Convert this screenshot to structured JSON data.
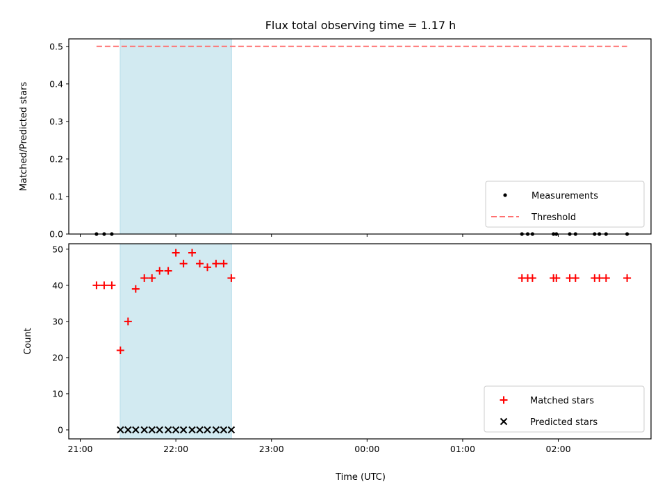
{
  "chart_data": [
    {
      "type": "scatter",
      "title": "Flux total observing time = 1.17 h",
      "xlabel": "",
      "ylabel": "Matched/Predicted stars",
      "ylim": [
        0.0,
        0.52
      ],
      "yticks": [
        0.0,
        0.1,
        0.2,
        0.3,
        0.4,
        0.5
      ],
      "ytick_labels": [
        "0.0",
        "0.1",
        "0.2",
        "0.3",
        "0.4",
        "0.5"
      ],
      "xlim_hours": [
        20.88,
        26.97
      ],
      "highlight_span_hours": [
        21.417,
        22.583
      ],
      "highlight_color": "#add8e6",
      "series": [
        {
          "name": "Measurements",
          "kind": "scatter",
          "marker": "dot",
          "color": "#000000",
          "x": [
            21.17,
            21.25,
            21.33,
            25.62,
            25.68,
            25.73,
            25.95,
            25.98,
            26.12,
            26.18,
            26.38,
            26.43,
            26.5,
            26.72
          ],
          "y": [
            0,
            0,
            0,
            0,
            0,
            0,
            0,
            0,
            0,
            0,
            0,
            0,
            0,
            0
          ]
        },
        {
          "name": "Threshold",
          "kind": "line",
          "style": "dashed",
          "color": "#ff7070",
          "x": [
            21.17,
            26.72
          ],
          "y": [
            0.5,
            0.5
          ]
        }
      ],
      "legend_position": "lower right"
    },
    {
      "type": "scatter",
      "xlabel": "Time (UTC)",
      "ylabel": "Count",
      "ylim": [
        -2.5,
        51.5
      ],
      "yticks": [
        0,
        10,
        20,
        30,
        40,
        50
      ],
      "ytick_labels": [
        "0",
        "10",
        "20",
        "30",
        "40",
        "50"
      ],
      "xlim_hours": [
        20.88,
        26.97
      ],
      "xticks_hours": [
        21,
        22,
        23,
        24,
        25,
        26
      ],
      "xtick_labels": [
        "21:00",
        "22:00",
        "23:00",
        "00:00",
        "01:00",
        "02:00"
      ],
      "highlight_span_hours": [
        21.417,
        22.583
      ],
      "highlight_color": "#add8e6",
      "series": [
        {
          "name": "Matched stars",
          "marker": "plus",
          "color": "#ff0000",
          "x": [
            21.17,
            21.25,
            21.33,
            21.42,
            21.5,
            21.58,
            21.67,
            21.75,
            21.83,
            21.92,
            22.0,
            22.08,
            22.17,
            22.25,
            22.33,
            22.42,
            22.5,
            22.58,
            25.62,
            25.68,
            25.73,
            25.95,
            25.98,
            26.12,
            26.18,
            26.38,
            26.43,
            26.5,
            26.72
          ],
          "y": [
            40,
            40,
            40,
            22,
            30,
            39,
            42,
            42,
            44,
            44,
            49,
            46,
            49,
            46,
            45,
            46,
            46,
            42,
            42,
            42,
            42,
            42,
            42,
            42,
            42,
            42,
            42,
            42,
            42
          ]
        },
        {
          "name": "Predicted stars",
          "marker": "x",
          "color": "#000000",
          "x": [
            21.42,
            21.5,
            21.58,
            21.67,
            21.75,
            21.83,
            21.92,
            22.0,
            22.08,
            22.17,
            22.25,
            22.33,
            22.42,
            22.5,
            22.58
          ],
          "y": [
            0,
            0,
            0,
            0,
            0,
            0,
            0,
            0,
            0,
            0,
            0,
            0,
            0,
            0,
            0
          ]
        }
      ],
      "legend_position": "lower right"
    }
  ]
}
